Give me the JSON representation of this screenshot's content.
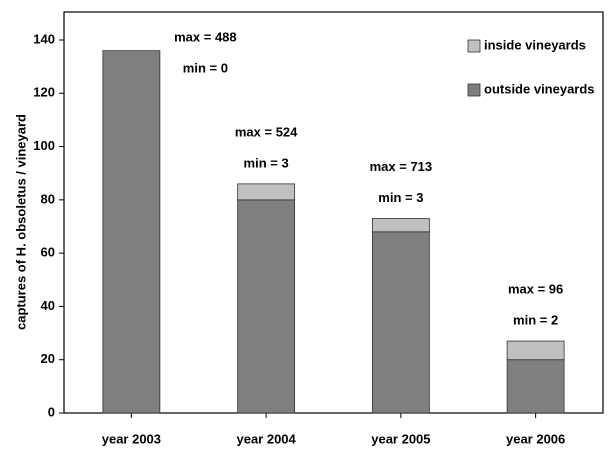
{
  "chart_data": {
    "type": "stacked_bar",
    "y_label": "captures of H. obsoletus / vineyard",
    "categories": [
      "year 2003",
      "year 2004",
      "year 2005",
      "year 2006"
    ],
    "series": [
      {
        "name": "outside vineyards",
        "color": "#7f7f7f",
        "values": [
          136,
          80,
          68,
          20
        ]
      },
      {
        "name": "inside vineyards",
        "color": "#c0c0c0",
        "values": [
          0,
          6,
          5,
          7
        ]
      }
    ],
    "annotations": [
      {
        "max": "max = 488",
        "min": "min = 0"
      },
      {
        "max": "max = 524",
        "min": "min = 3"
      },
      {
        "max": "max = 713",
        "min": "min = 3"
      },
      {
        "max": "max = 96",
        "min": "min = 2"
      }
    ],
    "ylim": [
      0,
      140
    ],
    "yticks": [
      0,
      20,
      40,
      60,
      80,
      100,
      120,
      140
    ],
    "legend": "upper right"
  }
}
